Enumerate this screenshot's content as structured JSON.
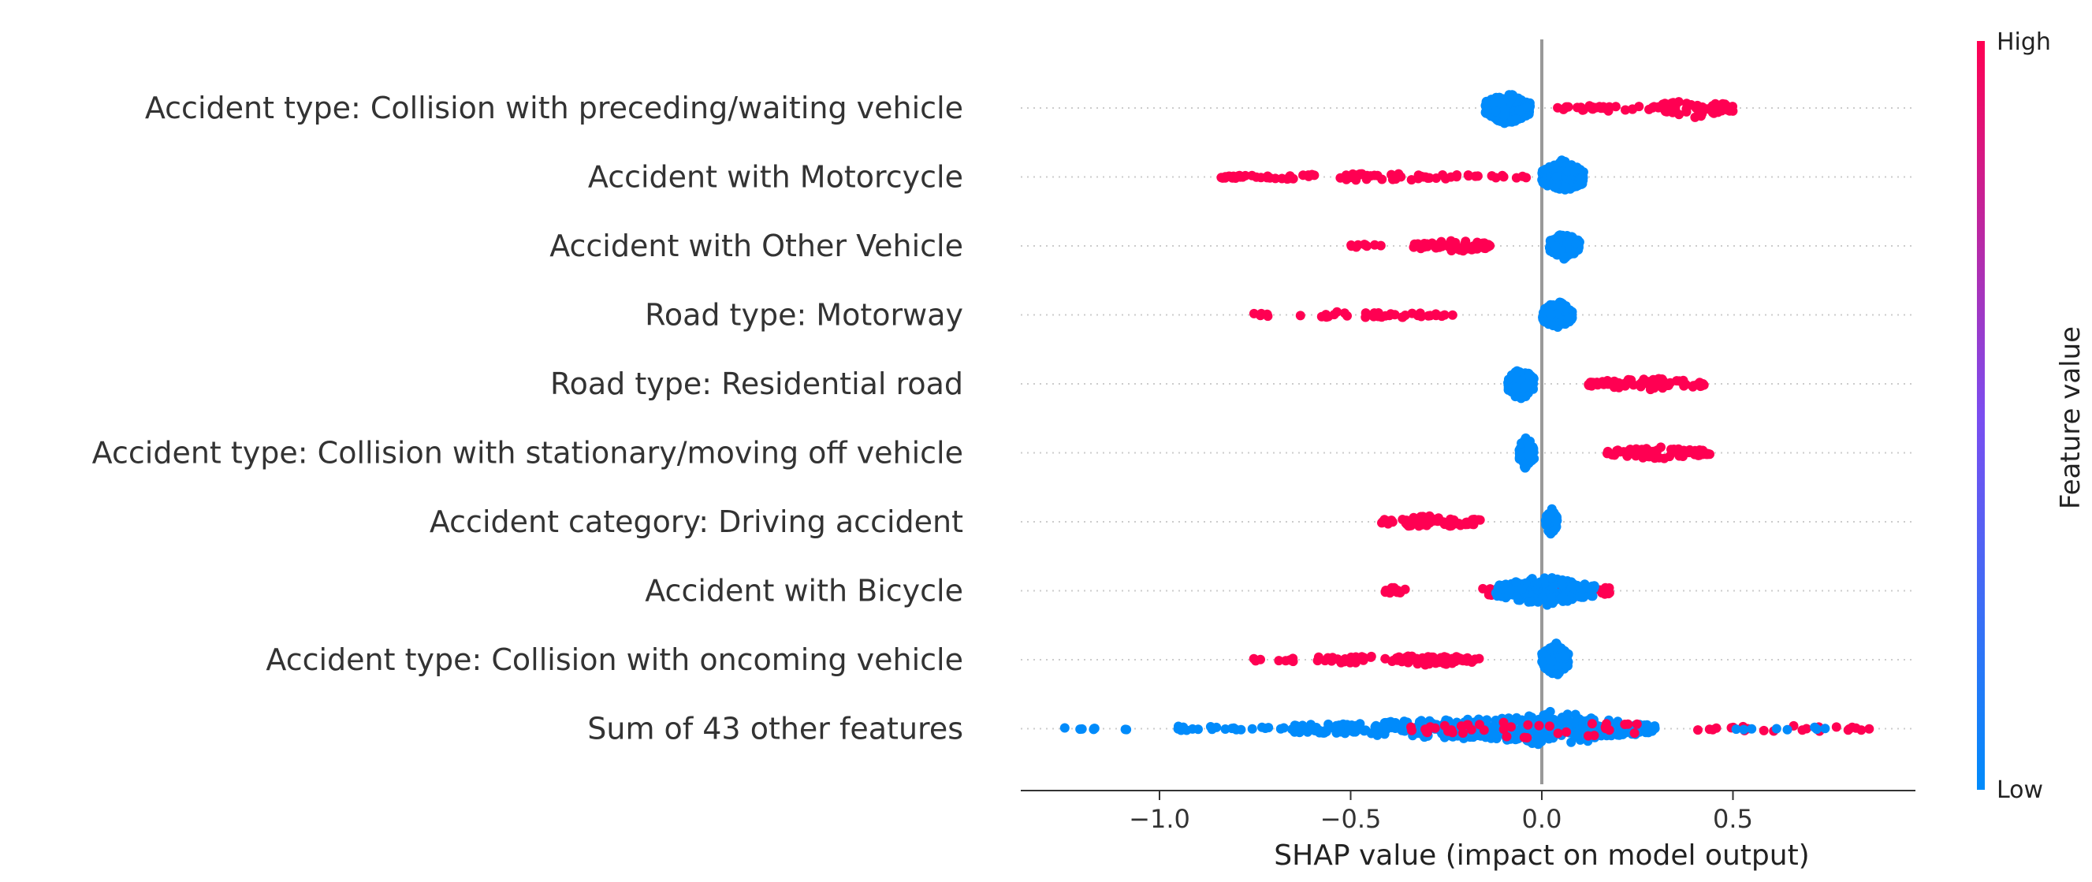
{
  "chart_data": {
    "type": "scatter",
    "subtype": "shap-beeswarm",
    "title": "",
    "xlabel": "SHAP value (impact on model output)",
    "xlim": [
      -1.35,
      1.0
    ],
    "xticks": [
      {
        "value": -1.0,
        "label": "−1.0"
      },
      {
        "value": -0.5,
        "label": "−0.5"
      },
      {
        "value": 0.0,
        "label": "0.0"
      },
      {
        "value": 0.5,
        "label": "0.5"
      }
    ],
    "colorbar": {
      "title": "Feature value",
      "high_label": "High",
      "low_label": "Low",
      "high_color": "#ff0052",
      "low_color": "#008bfb"
    },
    "features": [
      {
        "name": "Accident type: Collision with preceding/waiting vehicle",
        "groups": [
          {
            "color": "low",
            "min": -0.15,
            "max": -0.03,
            "spread": 1.0,
            "count": 160
          },
          {
            "color": "high",
            "min": 0.04,
            "max": 0.31,
            "spread": 0.2,
            "count": 30
          },
          {
            "color": "high",
            "min": 0.3,
            "max": 0.5,
            "spread": 0.55,
            "count": 60
          }
        ]
      },
      {
        "name": "Accident with Motorcycle",
        "groups": [
          {
            "color": "high",
            "min": -0.84,
            "max": -0.02,
            "spread": 0.2,
            "count": 90
          },
          {
            "color": "low",
            "min": 0.0,
            "max": 0.11,
            "spread": 1.0,
            "count": 170
          }
        ]
      },
      {
        "name": "Accident with Other Vehicle",
        "groups": [
          {
            "color": "high",
            "min": -0.5,
            "max": -0.42,
            "spread": 0.15,
            "count": 10
          },
          {
            "color": "high",
            "min": -0.34,
            "max": -0.13,
            "spread": 0.35,
            "count": 60
          },
          {
            "color": "low",
            "min": 0.02,
            "max": 0.1,
            "spread": 0.8,
            "count": 110
          }
        ]
      },
      {
        "name": "Road type: Motorway",
        "groups": [
          {
            "color": "high",
            "min": -0.76,
            "max": -0.23,
            "spread": 0.2,
            "count": 40
          },
          {
            "color": "low",
            "min": 0.0,
            "max": 0.08,
            "spread": 0.85,
            "count": 110
          }
        ]
      },
      {
        "name": "Road type: Residential road",
        "groups": [
          {
            "color": "low",
            "min": -0.09,
            "max": -0.02,
            "spread": 1.0,
            "count": 100
          },
          {
            "color": "high",
            "min": 0.12,
            "max": 0.43,
            "spread": 0.35,
            "count": 80
          }
        ]
      },
      {
        "name": "Accident type: Collision with stationary/moving off vehicle",
        "groups": [
          {
            "color": "low",
            "min": -0.06,
            "max": -0.02,
            "spread": 1.0,
            "count": 90
          },
          {
            "color": "high",
            "min": 0.17,
            "max": 0.44,
            "spread": 0.35,
            "count": 80
          }
        ]
      },
      {
        "name": "Accident category: Driving accident",
        "groups": [
          {
            "color": "high",
            "min": -0.42,
            "max": -0.16,
            "spread": 0.35,
            "count": 70
          },
          {
            "color": "low",
            "min": 0.01,
            "max": 0.04,
            "spread": 0.8,
            "count": 80
          }
        ]
      },
      {
        "name": "Accident with Bicycle",
        "groups": [
          {
            "color": "high",
            "min": -0.41,
            "max": -0.35,
            "spread": 0.25,
            "count": 12
          },
          {
            "color": "high",
            "min": -0.16,
            "max": 0.18,
            "spread": 0.55,
            "count": 50
          },
          {
            "color": "low",
            "min": -0.12,
            "max": 0.14,
            "spread": 0.85,
            "count": 170
          }
        ]
      },
      {
        "name": "Accident type: Collision with oncoming vehicle",
        "groups": [
          {
            "color": "high",
            "min": -0.76,
            "max": -0.16,
            "spread": 0.2,
            "count": 45
          },
          {
            "color": "high",
            "min": -0.39,
            "max": -0.17,
            "spread": 0.35,
            "count": 50
          },
          {
            "color": "low",
            "min": 0.0,
            "max": 0.07,
            "spread": 1.0,
            "count": 130
          }
        ]
      },
      {
        "name": "Sum of 43 other features",
        "groups": [
          {
            "color": "low",
            "min": -1.25,
            "max": -0.65,
            "spread": 0.15,
            "count": 30
          },
          {
            "color": "low",
            "min": -0.65,
            "max": 0.3,
            "spread": 0.6,
            "count": 320
          },
          {
            "color": "low",
            "min": -0.2,
            "max": 0.25,
            "spread": 1.0,
            "count": 180
          },
          {
            "color": "high",
            "min": -0.35,
            "max": 0.3,
            "spread": 0.6,
            "count": 40
          },
          {
            "color": "high",
            "min": 0.4,
            "max": 0.87,
            "spread": 0.2,
            "count": 25
          },
          {
            "color": "low",
            "min": 0.5,
            "max": 0.75,
            "spread": 0.15,
            "count": 8
          }
        ]
      }
    ]
  }
}
